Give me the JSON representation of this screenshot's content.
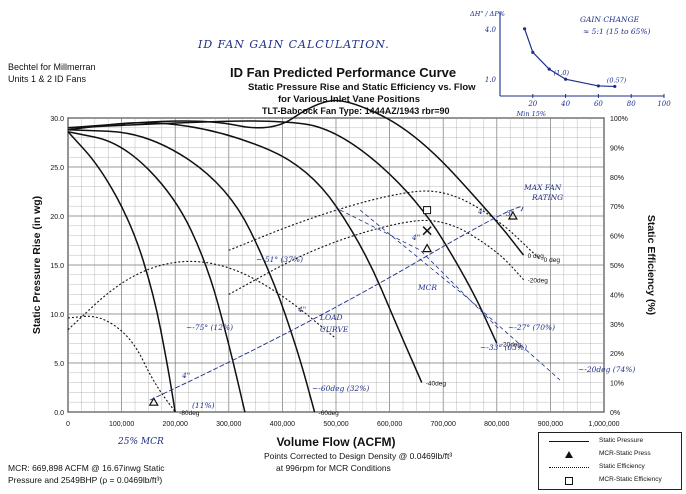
{
  "header": {
    "line1": "Bechtel for Millmerran",
    "line2": "Units 1 & 2 ID Fans",
    "title": "ID Fan Predicted Performance Curve",
    "subtitle1": "Static Pressure Rise and Static Efficiency vs. Flow",
    "subtitle2": "for Various Inlet Vane Positions",
    "subtitle3": "TLT-Babcock Fan Type:  1444AZ/1943 rbr=90"
  },
  "handwritten": {
    "title": "ID FAN GAIN CALCULATION.",
    "gain_change": "GAIN CHANGE",
    "gain_value": "≈ 5:1 (15 to 65%)",
    "max_fan_rating": "MAX FAN RATING",
    "mcr": "MCR",
    "min15": "Min 15%",
    "mcr_bottom": "25% MCR",
    "labels": [
      "~-75° (12%)",
      "~-51° (37%)",
      "~-60deg (32%)",
      "~-27° (70%)",
      "~-33° (63%)",
      "~-20deg (74%)",
      "(11%)"
    ],
    "inset_ylabel": "ΔH\" / ΔP%",
    "inset_points": [
      "(1.0)",
      "(0.57)"
    ],
    "delta_labels": [
      "4\"",
      "4\"",
      "4\"",
      "4\"",
      "3\""
    ]
  },
  "footer": {
    "mcr_line1": "MCR: 669,898 ACFM @ 16.67inwg Static",
    "mcr_line2": "Pressure and 2549BHP (ρ = 0.0469lb/ft³)",
    "note1": "Points Corrected to Design Density @ 0.0469lb/ft³",
    "note2": "at 996rpm for MCR Conditions"
  },
  "legend": {
    "items": [
      "Static Pressure",
      "MCR-Static Press",
      "Static Efficiency",
      "MCR-Static Efficiency"
    ]
  },
  "chart_data": [
    {
      "type": "line",
      "title": "ID Fan Predicted Performance Curve",
      "xlabel": "Volume Flow (ACFM)",
      "ylabel": "Static Pressure Rise (in wg)",
      "y2label": "Static Efficiency (%)",
      "xlim": [
        0,
        1000000
      ],
      "ylim": [
        0,
        30
      ],
      "y2lim": [
        0,
        100
      ],
      "xticks": [
        "0",
        "100,000",
        "200,000",
        "300,000",
        "400,000",
        "500,000",
        "600,000",
        "700,000",
        "800,000",
        "900,000",
        "1,000,000"
      ],
      "yticks": [
        "0.0",
        "5.0",
        "10.0",
        "15.0",
        "20.0",
        "25.0",
        "30.0"
      ],
      "y2ticks": [
        "0%",
        "10%",
        "20%",
        "30%",
        "40%",
        "50%",
        "60%",
        "70%",
        "80%",
        "90%",
        "100%"
      ],
      "grid": true,
      "legend_position": "bottom-right",
      "series": [
        {
          "name": "Static Pressure",
          "label": "-80deg",
          "style": "solid",
          "x": [
            0,
            60000,
            120000,
            160000,
            185000,
            200000
          ],
          "y": [
            28.6,
            25,
            19,
            12,
            5,
            0
          ]
        },
        {
          "name": "Static Pressure",
          "label": "",
          "style": "solid",
          "x": [
            0,
            100000,
            200000,
            260000,
            300000,
            330000
          ],
          "y": [
            28.6,
            27.5,
            22,
            15,
            7,
            0
          ]
        },
        {
          "name": "Static Pressure",
          "label": "-60deg",
          "style": "solid",
          "x": [
            0,
            150000,
            300000,
            380000,
            430000,
            460000
          ],
          "y": [
            28.8,
            28.5,
            23,
            14,
            6,
            0
          ]
        },
        {
          "name": "Static Pressure",
          "label": "-40deg",
          "style": "solid",
          "x": [
            0,
            150000,
            300000,
            450000,
            550000,
            620000,
            660000
          ],
          "y": [
            28.8,
            29.8,
            28.5,
            25,
            17,
            8,
            3
          ]
        },
        {
          "name": "Static Pressure",
          "label": "-20deg",
          "style": "solid",
          "x": [
            0,
            200000,
            380000,
            500000,
            650000,
            750000,
            800000
          ],
          "y": [
            29,
            29.5,
            29.8,
            29,
            22,
            13,
            7
          ]
        },
        {
          "name": "Static Pressure",
          "label": "0 deg",
          "style": "solid",
          "x": [
            0,
            250000,
            380000,
            460000,
            520000,
            650000,
            800000,
            850000
          ],
          "y": [
            29,
            30,
            28.5,
            31.5,
            32,
            28.5,
            19.5,
            16
          ]
        },
        {
          "name": "Static Efficiency",
          "label": "-20deg",
          "style": "dotted",
          "x": [
            300000,
            450000,
            600000,
            700000,
            800000,
            850000
          ],
          "y": [
            40,
            55,
            64,
            66,
            55,
            45
          ]
        },
        {
          "name": "Static Efficiency",
          "label": "0 deg",
          "style": "dotted",
          "x": [
            300000,
            450000,
            600000,
            700000,
            800000,
            880000
          ],
          "y": [
            55,
            66,
            74,
            76,
            66,
            52
          ]
        },
        {
          "name": "Static Efficiency",
          "label": "",
          "style": "dotted",
          "x": [
            0,
            100000,
            200000,
            300000,
            400000,
            500000
          ],
          "y": [
            28,
            45,
            52,
            50,
            40,
            25
          ]
        },
        {
          "name": "Static Efficiency",
          "label": "",
          "style": "dotted",
          "x": [
            0,
            60000,
            120000,
            160000,
            200000
          ],
          "y": [
            32,
            33,
            25,
            10,
            0
          ]
        }
      ],
      "points": [
        {
          "name": "MCR-Static Press",
          "x": 669898,
          "y": 16.67
        },
        {
          "name": "MCR-Static Efficiency",
          "x": 669898,
          "y": 20.6
        },
        {
          "name": "Operating point",
          "x": 670000,
          "y": 18.5
        },
        {
          "name": "Max fan rating",
          "x": 830000,
          "y": 20.0
        },
        {
          "name": "25% MCR",
          "x": 160000,
          "y": 1.0
        }
      ]
    },
    {
      "type": "line",
      "title": "",
      "xlabel": "",
      "ylabel": "ΔH\" / ΔP%",
      "xlim": [
        0,
        100
      ],
      "ylim": [
        0,
        5
      ],
      "xticks": [
        "20",
        "40",
        "60",
        "80",
        "100"
      ],
      "yticks": [
        "1.0",
        "4.0"
      ],
      "series": [
        {
          "name": "",
          "x": [
            15,
            20,
            30,
            40,
            60,
            70
          ],
          "y": [
            4.0,
            2.6,
            1.6,
            1.0,
            0.6,
            0.57
          ]
        }
      ]
    }
  ]
}
